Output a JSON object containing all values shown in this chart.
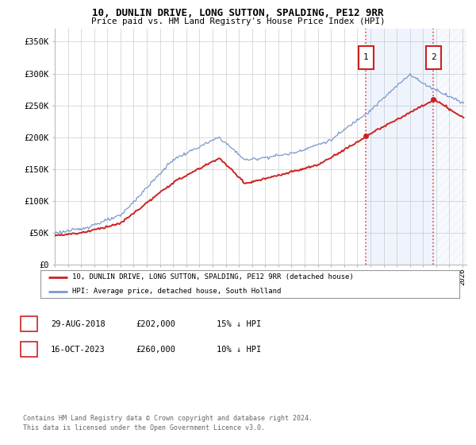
{
  "title": "10, DUNLIN DRIVE, LONG SUTTON, SPALDING, PE12 9RR",
  "subtitle": "Price paid vs. HM Land Registry's House Price Index (HPI)",
  "ylim": [
    0,
    370000
  ],
  "yticks": [
    0,
    50000,
    100000,
    150000,
    200000,
    250000,
    300000,
    350000
  ],
  "ytick_labels": [
    "£0",
    "£50K",
    "£100K",
    "£150K",
    "£200K",
    "£250K",
    "£300K",
    "£350K"
  ],
  "x_start_year": 1995,
  "x_end_year": 2026,
  "hpi_color": "#7799cc",
  "price_color": "#cc2222",
  "transaction1_date": 2018.67,
  "transaction1_price": 202000,
  "transaction2_date": 2023.79,
  "transaction2_price": 260000,
  "legend_label1": "10, DUNLIN DRIVE, LONG SUTTON, SPALDING, PE12 9RR (detached house)",
  "legend_label2": "HPI: Average price, detached house, South Holland",
  "annotation1_label": "1",
  "annotation1_date": "29-AUG-2018",
  "annotation1_price": "£202,000",
  "annotation1_note": "15% ↓ HPI",
  "annotation2_label": "2",
  "annotation2_date": "16-OCT-2023",
  "annotation2_price": "£260,000",
  "annotation2_note": "10% ↓ HPI",
  "footnote_line1": "Contains HM Land Registry data © Crown copyright and database right 2024.",
  "footnote_line2": "This data is licensed under the Open Government Licence v3.0."
}
